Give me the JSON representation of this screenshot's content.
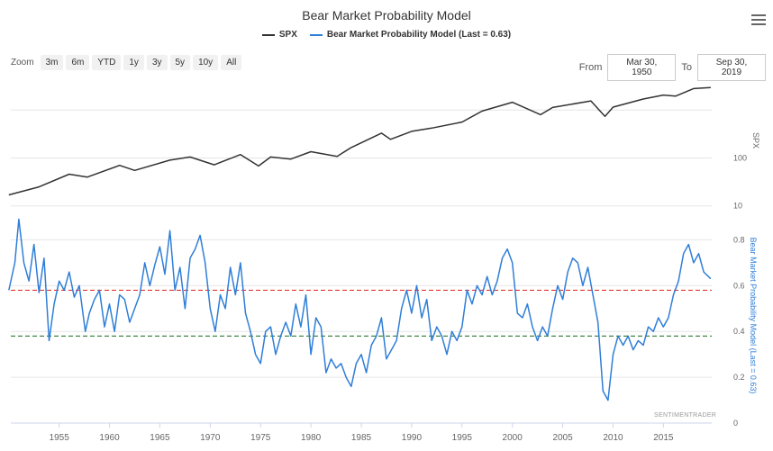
{
  "title": "Bear Market Probability Model",
  "legend": [
    {
      "name": "SPX",
      "color": "#333333"
    },
    {
      "name": "Bear Market Probability Model (Last = 0.63)",
      "color": "#2f7ed8"
    }
  ],
  "zoom": {
    "label": "Zoom",
    "buttons": [
      "3m",
      "6m",
      "YTD",
      "1y",
      "3y",
      "5y",
      "10y",
      "All"
    ]
  },
  "range": {
    "from_label": "From",
    "from_value": "Mar 30, 1950",
    "to_label": "To",
    "to_value": "Sep 30, 2019"
  },
  "credit": "SENTIMENTRADER",
  "chart_data": [
    {
      "type": "line",
      "title": "",
      "series": [
        {
          "name": "SPX",
          "color": "#333333"
        }
      ],
      "x": [
        1950,
        1953,
        1956,
        1957.8,
        1961,
        1962.5,
        1966,
        1968,
        1970.4,
        1973,
        1974.8,
        1976,
        1978,
        1980,
        1982.6,
        1984,
        1987,
        1987.9,
        1990,
        1992,
        1995,
        1997,
        2000,
        2002.8,
        2004,
        2007.8,
        2009.2,
        2010,
        2013,
        2015,
        2016.2,
        2018,
        2019.7
      ],
      "y": [
        17,
        25,
        46,
        40,
        70,
        55,
        90,
        105,
        72,
        118,
        68,
        105,
        95,
        135,
        108,
        165,
        330,
        245,
        360,
        420,
        560,
        950,
        1450,
        800,
        1130,
        1550,
        735,
        1150,
        1700,
        2050,
        1950,
        2800,
        2950
      ],
      "ylabel": "SPX",
      "scale": "log",
      "ytick_labels": [
        "10",
        "100"
      ],
      "ylim": [
        7,
        5000
      ]
    },
    {
      "type": "line",
      "title": "",
      "series": [
        {
          "name": "Bear Market Probability Model (Last = 0.63)",
          "color": "#2f7ed8"
        }
      ],
      "x": [
        1950,
        1950.6,
        1951,
        1951.5,
        1952,
        1952.5,
        1953,
        1953.5,
        1954,
        1954.5,
        1955,
        1955.5,
        1956,
        1956.5,
        1957,
        1957.6,
        1958,
        1958.5,
        1959,
        1959.5,
        1960,
        1960.5,
        1961,
        1961.5,
        1962,
        1962.5,
        1963,
        1963.5,
        1964,
        1964.5,
        1965,
        1965.5,
        1966,
        1966.5,
        1967,
        1967.5,
        1968,
        1968.5,
        1969,
        1969.5,
        1970,
        1970.5,
        1971,
        1971.5,
        1972,
        1972.5,
        1973,
        1973.5,
        1974,
        1974.5,
        1975,
        1975.5,
        1976,
        1976.5,
        1977,
        1977.5,
        1978,
        1978.5,
        1979,
        1979.5,
        1980,
        1980.5,
        1981,
        1981.5,
        1982,
        1982.5,
        1983,
        1983.5,
        1984,
        1984.5,
        1985,
        1985.5,
        1986,
        1986.5,
        1987,
        1987.5,
        1988,
        1988.5,
        1989,
        1989.5,
        1990,
        1990.5,
        1991,
        1991.5,
        1992,
        1992.5,
        1993,
        1993.5,
        1994,
        1994.5,
        1995,
        1995.5,
        1996,
        1996.5,
        1997,
        1997.5,
        1998,
        1998.5,
        1999,
        1999.5,
        2000,
        2000.5,
        2001,
        2001.5,
        2002,
        2002.5,
        2003,
        2003.5,
        2004,
        2004.5,
        2005,
        2005.5,
        2006,
        2006.5,
        2007,
        2007.5,
        2008,
        2008.5,
        2009,
        2009.5,
        2010,
        2010.5,
        2011,
        2011.5,
        2012,
        2012.5,
        2013,
        2013.5,
        2014,
        2014.5,
        2015,
        2015.5,
        2016,
        2016.5,
        2017,
        2017.5,
        2018,
        2018.5,
        2019,
        2019.7
      ],
      "y": [
        0.58,
        0.7,
        0.89,
        0.7,
        0.62,
        0.78,
        0.57,
        0.72,
        0.36,
        0.52,
        0.62,
        0.58,
        0.66,
        0.55,
        0.6,
        0.4,
        0.48,
        0.54,
        0.58,
        0.42,
        0.52,
        0.4,
        0.56,
        0.54,
        0.44,
        0.5,
        0.56,
        0.7,
        0.6,
        0.69,
        0.77,
        0.65,
        0.84,
        0.58,
        0.68,
        0.5,
        0.72,
        0.76,
        0.82,
        0.7,
        0.5,
        0.4,
        0.56,
        0.5,
        0.68,
        0.56,
        0.7,
        0.48,
        0.4,
        0.3,
        0.26,
        0.4,
        0.42,
        0.3,
        0.38,
        0.44,
        0.38,
        0.52,
        0.42,
        0.56,
        0.3,
        0.46,
        0.42,
        0.22,
        0.28,
        0.24,
        0.26,
        0.2,
        0.16,
        0.26,
        0.3,
        0.22,
        0.34,
        0.38,
        0.46,
        0.28,
        0.32,
        0.36,
        0.5,
        0.58,
        0.48,
        0.6,
        0.46,
        0.54,
        0.36,
        0.42,
        0.38,
        0.3,
        0.4,
        0.36,
        0.42,
        0.58,
        0.52,
        0.6,
        0.56,
        0.64,
        0.56,
        0.62,
        0.72,
        0.76,
        0.7,
        0.48,
        0.46,
        0.52,
        0.42,
        0.36,
        0.42,
        0.38,
        0.5,
        0.6,
        0.54,
        0.66,
        0.72,
        0.7,
        0.6,
        0.68,
        0.56,
        0.44,
        0.14,
        0.1,
        0.3,
        0.38,
        0.34,
        0.38,
        0.32,
        0.36,
        0.34,
        0.42,
        0.4,
        0.46,
        0.42,
        0.46,
        0.56,
        0.62,
        0.74,
        0.78,
        0.7,
        0.74,
        0.66,
        0.63
      ],
      "ylabel": "Bear Market Probability Model (Last = 0.63)",
      "ytick_labels": [
        "0",
        "0.2",
        "0.4",
        "0.6",
        "0.8"
      ],
      "ylim": [
        0,
        0.9
      ],
      "reference_lines": [
        {
          "value": 0.58,
          "color": "#e53935",
          "style": "dashed"
        },
        {
          "value": 0.38,
          "color": "#2e7d32",
          "style": "dashed"
        }
      ]
    }
  ],
  "xaxis": {
    "ticks": [
      "1955",
      "1960",
      "1965",
      "1970",
      "1975",
      "1980",
      "1985",
      "1990",
      "1995",
      "2000",
      "2005",
      "2010",
      "2015"
    ]
  }
}
